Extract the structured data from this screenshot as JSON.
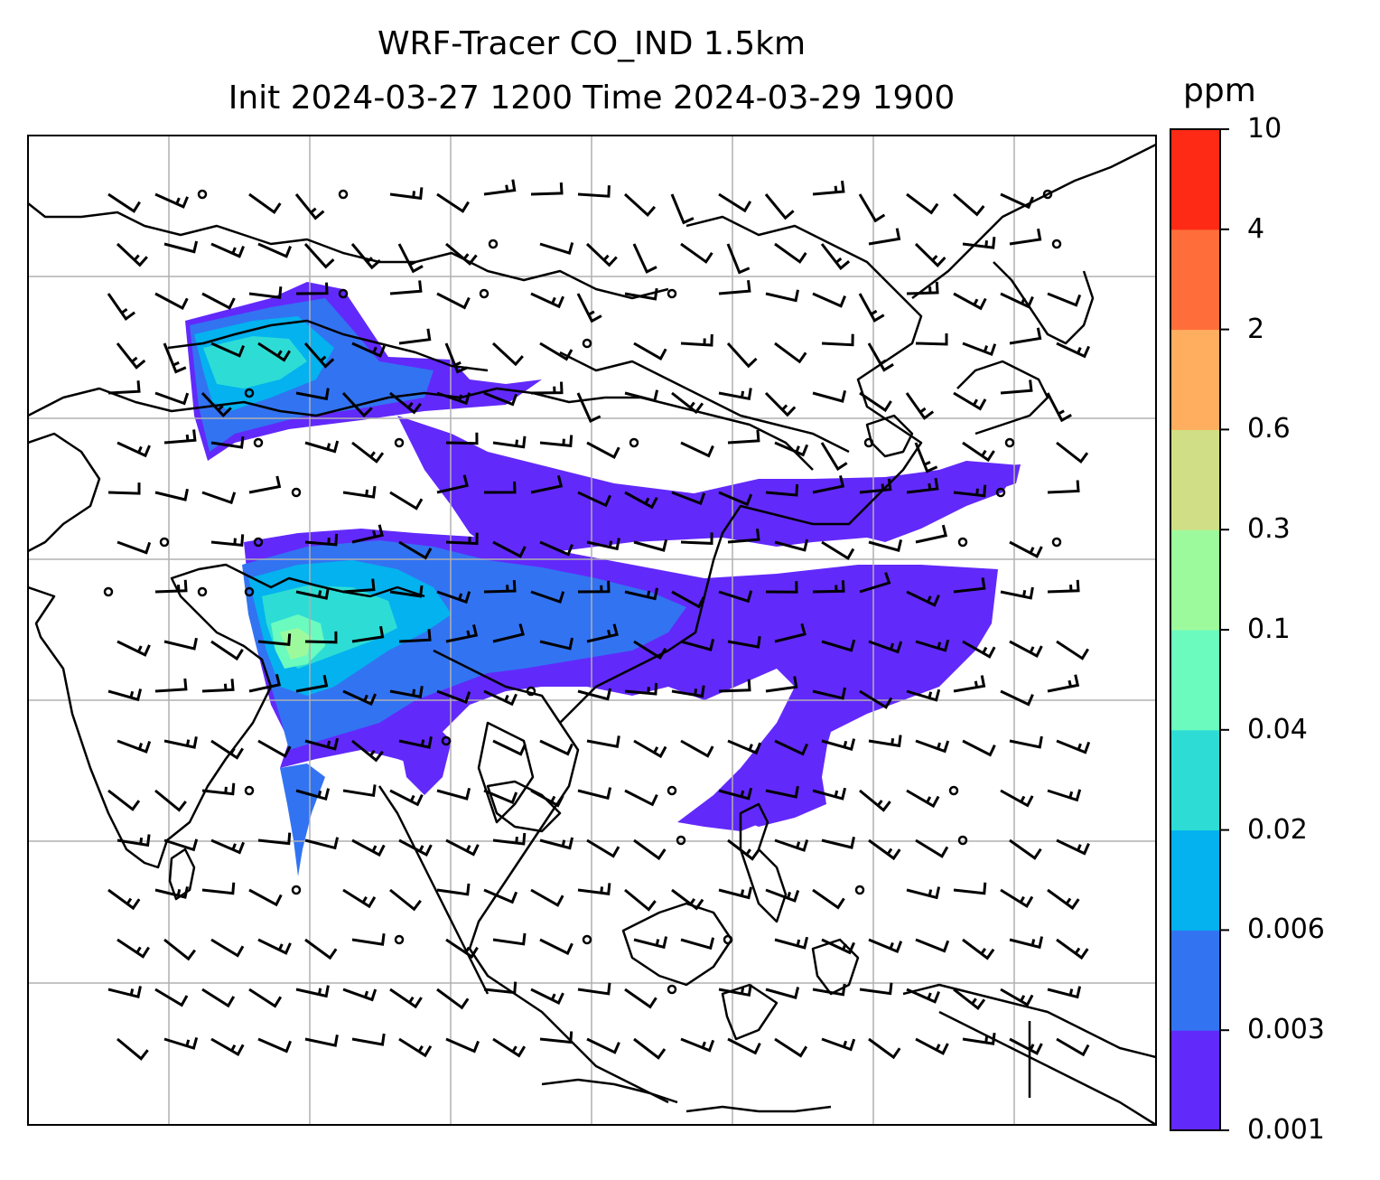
{
  "title": {
    "line1": "WRF-Tracer CO_IND 1.5km",
    "line2": "Init 2024-03-27 1200 Time 2024-03-29 1900"
  },
  "colorbar": {
    "unit": "ppm",
    "levels": [
      "0.001",
      "0.003",
      "0.006",
      "0.02",
      "0.04",
      "0.1",
      "0.3",
      "0.6",
      "2",
      "4",
      "10"
    ],
    "colors": [
      "#6229fb",
      "#3273f2",
      "#03b2ee",
      "#2dddd5",
      "#6bfbbf",
      "#9dfa9c",
      "#d0df85",
      "#ffae5f",
      "#ff6e3a",
      "#ff2a15"
    ]
  },
  "map": {
    "gridlines": true,
    "background": "#ffffff",
    "overlays": [
      "coastlines",
      "wind-barbs",
      "tracer-contours"
    ]
  }
}
